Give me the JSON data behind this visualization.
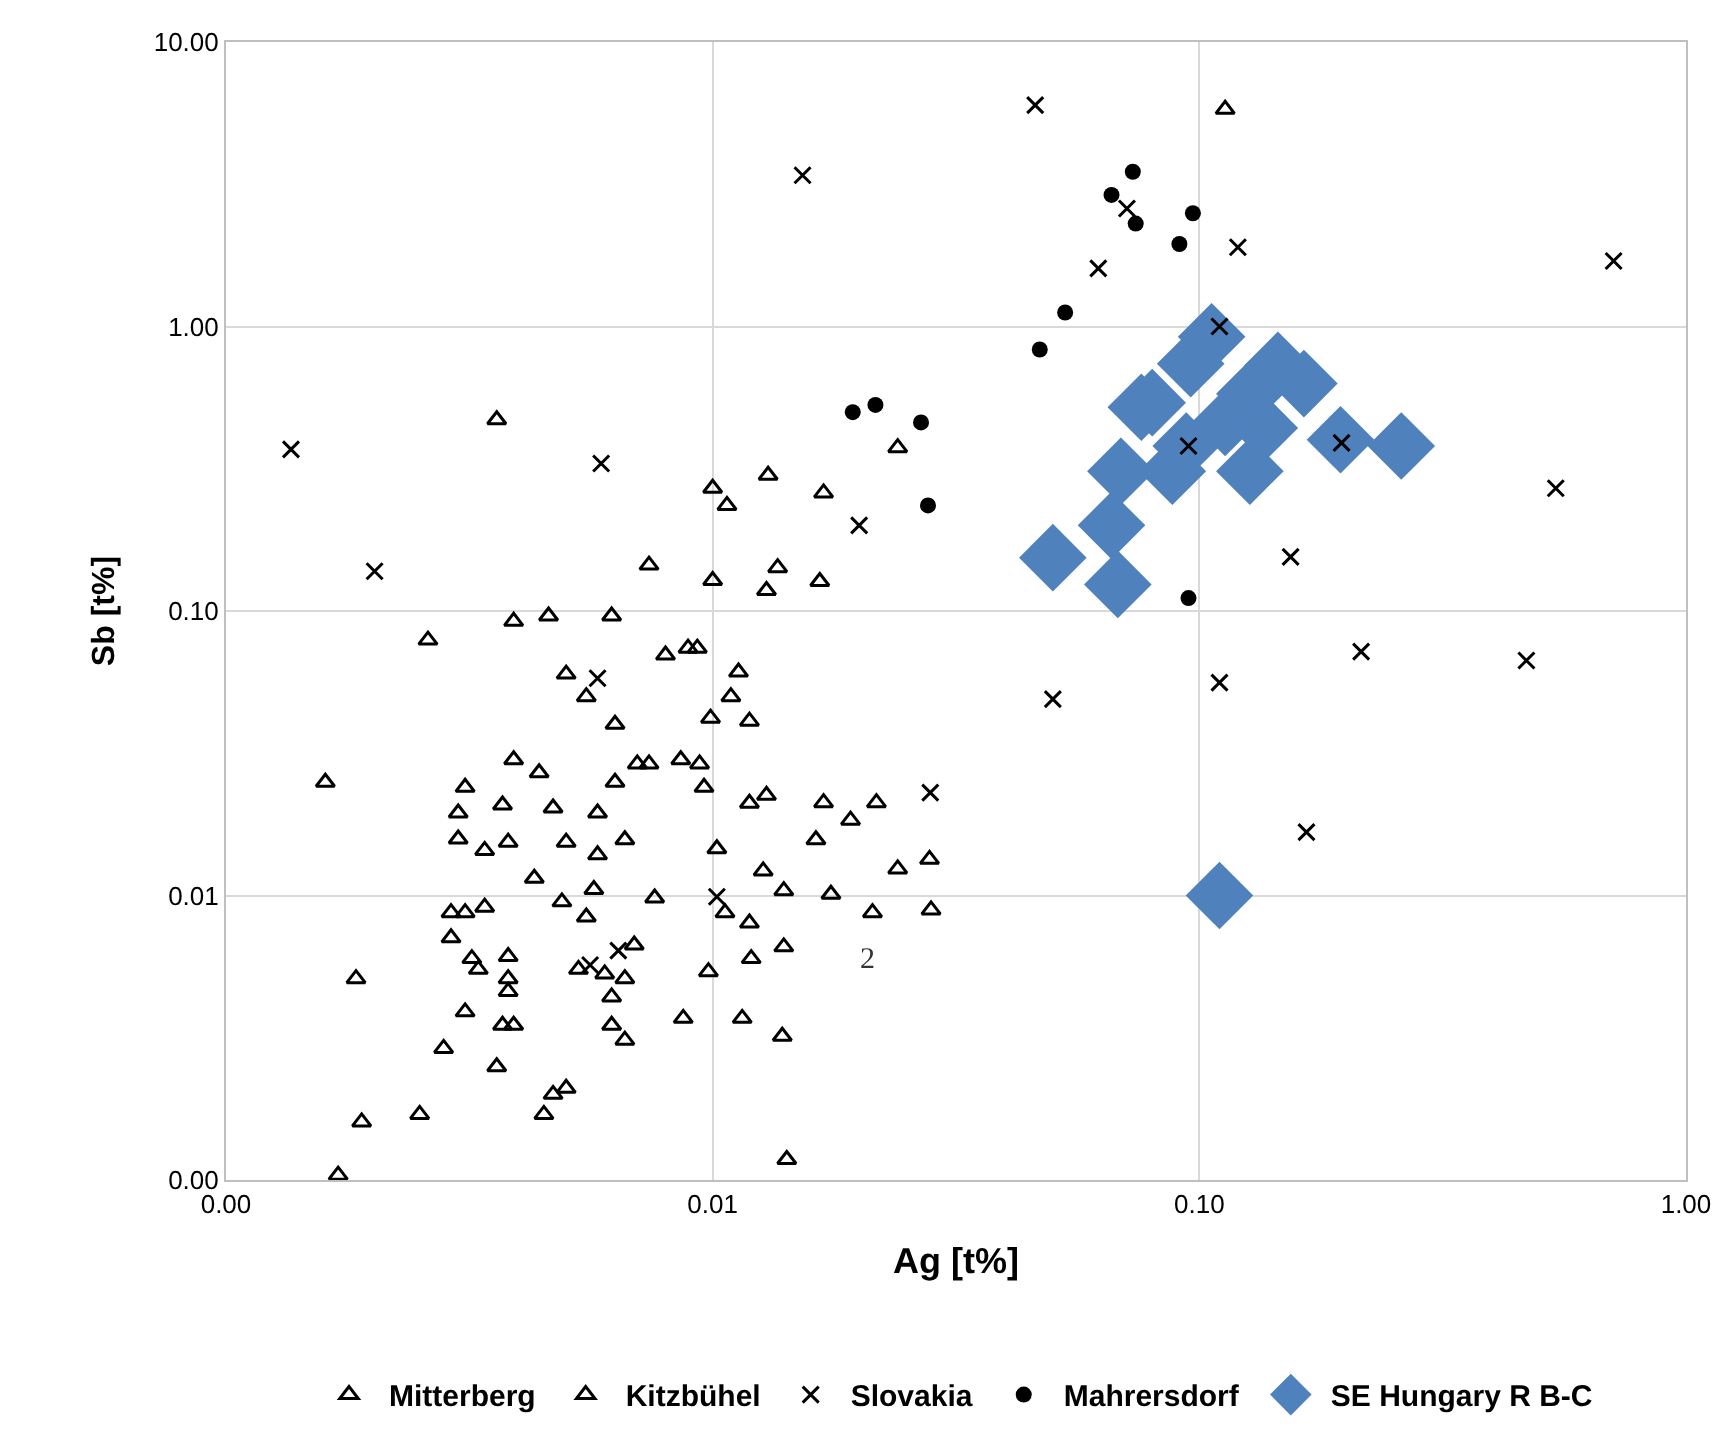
{
  "chart_data": {
    "type": "scatter",
    "xlabel": "Ag [t%]",
    "ylabel": "Sb [t%]",
    "log": "xy",
    "grid": true,
    "legend": "bottom",
    "xlim": [
      0.001,
      1
    ],
    "ylim": [
      0.001,
      10
    ],
    "xticks": [
      {
        "value": 0.001,
        "label": "0.00"
      },
      {
        "value": 0.01,
        "label": "0.01"
      },
      {
        "value": 0.1,
        "label": "0.10"
      },
      {
        "value": 1,
        "label": "1.00"
      }
    ],
    "yticks": [
      {
        "value": 0.001,
        "label": "0.00"
      },
      {
        "value": 0.01,
        "label": "0.01"
      },
      {
        "value": 0.1,
        "label": "0.10"
      },
      {
        "value": 1,
        "label": "1.00"
      },
      {
        "value": 10,
        "label": "10.00"
      }
    ],
    "annotations": [
      "2"
    ],
    "series": [
      {
        "name": "Mitterberg",
        "color": "#000000",
        "marker": "triangle",
        "x": [
          0.113,
          0.024,
          0.013,
          0.01,
          0.0107,
          0.0169,
          0.0074,
          0.01,
          0.0136,
          0.0129,
          0.0166,
          0.0062,
          0.0036,
          0.0039,
          0.0046,
          0.0026,
          0.008,
          0.0089,
          0.0093,
          0.005,
          0.0055,
          0.0113,
          0.0109,
          0.0099,
          0.0119,
          0.0063,
          0.0039,
          0.0044,
          0.007,
          0.0074,
          0.0086,
          0.0094,
          0.0096,
          0.0063,
          0.0016,
          0.0031,
          0.003,
          0.0037,
          0.0047,
          0.0058,
          0.0119,
          0.0129,
          0.003,
          0.0034,
          0.0038,
          0.005,
          0.0058,
          0.0066,
          0.0102
        ],
        "values": [
          5.8,
          0.375,
          0.3,
          0.27,
          0.235,
          0.26,
          0.145,
          0.128,
          0.142,
          0.118,
          0.127,
          0.096,
          0.47,
          0.092,
          0.096,
          0.079,
          0.07,
          0.074,
          0.074,
          0.06,
          0.05,
          0.061,
          0.05,
          0.042,
          0.041,
          0.04,
          0.03,
          0.027,
          0.029,
          0.029,
          0.03,
          0.029,
          0.024,
          0.025,
          0.025,
          0.024,
          0.0195,
          0.0208,
          0.0203,
          0.0195,
          0.0211,
          0.0225,
          0.0158,
          0.0144,
          0.0154,
          0.0154,
          0.0139,
          0.0157,
          0.0146
        ]
      },
      {
        "name": "Kitzbühel",
        "color": "#000000",
        "marker": "triangle",
        "x": [
          0.0043,
          0.0057,
          0.0049,
          0.0076,
          0.0127,
          0.014,
          0.0029,
          0.0031,
          0.0034,
          0.0029,
          0.0055,
          0.0106,
          0.0119,
          0.0032,
          0.0033,
          0.0038,
          0.0038,
          0.0038,
          0.0053,
          0.006,
          0.0066,
          0.0062,
          0.0069,
          0.0098,
          0.012,
          0.014,
          0.00185,
          0.0031,
          0.0037,
          0.0039,
          0.0062,
          0.0066,
          0.0087,
          0.0115,
          0.0139,
          0.0028,
          0.0036,
          0.0047,
          0.005,
          0.0045,
          0.0019,
          0.0025,
          0.0017,
          0.0142,
          0.0169,
          0.0217,
          0.0192,
          0.0163,
          0.0279,
          0.024,
          0.0175,
          0.0213,
          0.0281
        ],
        "values": [
          0.0115,
          0.0105,
          0.0095,
          0.0098,
          0.0122,
          0.0104,
          0.0087,
          0.0087,
          0.0091,
          0.0071,
          0.0084,
          0.0087,
          0.008,
          0.006,
          0.0055,
          0.0061,
          0.0051,
          0.0046,
          0.0055,
          0.0053,
          0.0051,
          0.0044,
          0.0067,
          0.0054,
          0.006,
          0.0066,
          0.0051,
          0.0039,
          0.0035,
          0.0035,
          0.0035,
          0.0031,
          0.0037,
          0.0037,
          0.0032,
          0.0029,
          0.0025,
          0.002,
          0.0021,
          0.0017,
          0.0016,
          0.0017,
          0.00104,
          0.00118,
          0.0212,
          0.0212,
          0.0184,
          0.0157,
          0.0134,
          0.0124,
          0.0101,
          0.0087,
          0.0089
        ]
      },
      {
        "name": "Slovakia",
        "color": "#000000",
        "marker": "cross",
        "x": [
          0.046,
          0.0153,
          0.071,
          0.12,
          0.062,
          0.11,
          0.095,
          0.02,
          0.0059,
          0.71,
          0.196,
          0.54,
          0.154,
          0.215,
          0.47,
          0.05,
          0.11,
          0.166,
          0.00136,
          0.00202,
          0.0058,
          0.0064,
          0.0056,
          0.0102,
          0.028
        ],
        "values": [
          6.0,
          3.4,
          2.6,
          1.9,
          1.6,
          1.0,
          0.38,
          0.2,
          0.33,
          1.7,
          0.39,
          0.27,
          0.155,
          0.072,
          0.067,
          0.049,
          0.056,
          0.0167,
          0.37,
          0.138,
          0.058,
          0.0064,
          0.0057,
          0.0099,
          0.023
        ]
      },
      {
        "name": "Mahrersdorf",
        "color": "#000000",
        "marker": "circle",
        "x": [
          0.073,
          0.066,
          0.074,
          0.097,
          0.091,
          0.053,
          0.047,
          0.0194,
          0.0216,
          0.0268,
          0.0277,
          0.095
        ],
        "values": [
          3.5,
          2.9,
          2.3,
          2.5,
          1.95,
          1.12,
          0.83,
          0.5,
          0.53,
          0.46,
          0.235,
          0.111
        ]
      },
      {
        "name": "SE Hungary R B-C",
        "color": "#4f81bd",
        "marker": "diamond",
        "x": [
          0.106,
          0.096,
          0.145,
          0.164,
          0.127,
          0.08,
          0.076,
          0.094,
          0.113,
          0.136,
          0.069,
          0.088,
          0.127,
          0.195,
          0.26,
          0.066,
          0.05,
          0.068,
          0.11
        ],
        "values": [
          0.92,
          0.74,
          0.73,
          0.63,
          0.58,
          0.54,
          0.52,
          0.38,
          0.46,
          0.44,
          0.31,
          0.31,
          0.31,
          0.4,
          0.38,
          0.2,
          0.154,
          0.124,
          0.01
        ]
      }
    ]
  }
}
